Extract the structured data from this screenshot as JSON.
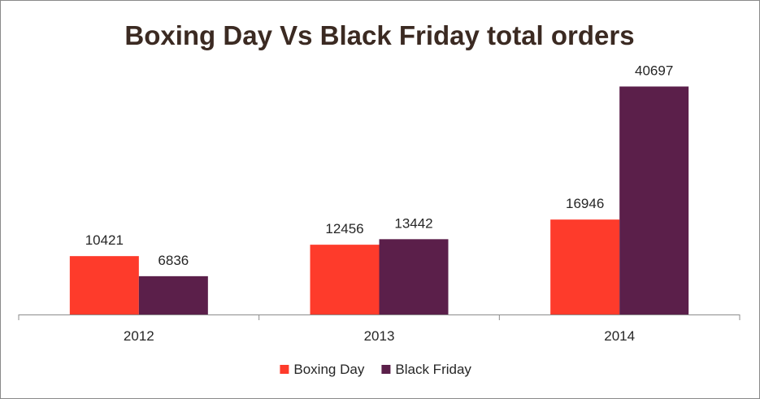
{
  "chart_data": {
    "type": "bar",
    "title": "Boxing Day Vs Black Friday total orders",
    "xlabel": "",
    "ylabel": "",
    "categories": [
      "2012",
      "2013",
      "2014"
    ],
    "series": [
      {
        "name": "Boxing Day",
        "values": [
          10421,
          12456,
          16946
        ],
        "color": "#fe3b2b"
      },
      {
        "name": "Black Friday",
        "values": [
          6836,
          13442,
          40697
        ],
        "color": "#5b1f4a"
      }
    ],
    "ylim": [
      0,
      47000
    ],
    "grid": false,
    "legend": "bottom",
    "data_labels": true
  }
}
